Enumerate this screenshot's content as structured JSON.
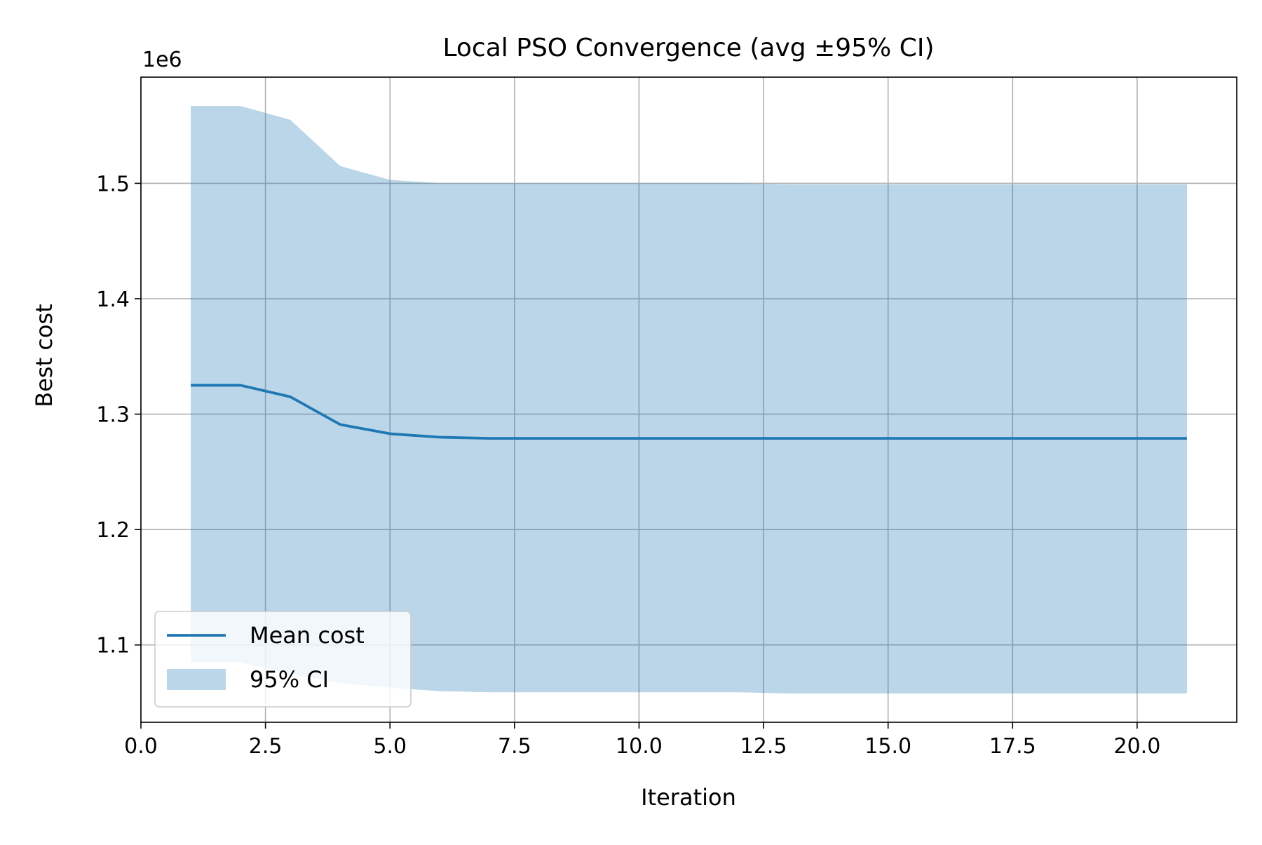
{
  "chart_data": {
    "type": "line",
    "title": "Local PSO Convergence (avg ±95% CI)",
    "xlabel": "Iteration",
    "ylabel": "Best cost",
    "offset_label": "1e6",
    "xlim": [
      0,
      22
    ],
    "ylim": [
      1.033,
      1.592
    ],
    "xticks": [
      0,
      2.5,
      5,
      7.5,
      10,
      12.5,
      15,
      17.5,
      20
    ],
    "xtick_labels": [
      "0.0",
      "2.5",
      "5.0",
      "7.5",
      "10.0",
      "12.5",
      "15.0",
      "17.5",
      "20.0"
    ],
    "yticks": [
      1.1,
      1.2,
      1.3,
      1.4,
      1.5
    ],
    "ytick_labels": [
      "1.1",
      "1.2",
      "1.3",
      "1.4",
      "1.5"
    ],
    "grid": true,
    "legend_position": "lower-left",
    "x": [
      1,
      2,
      3,
      4,
      5,
      6,
      7,
      8,
      9,
      10,
      11,
      12,
      13,
      14,
      15,
      16,
      17,
      18,
      19,
      20,
      21
    ],
    "series": [
      {
        "name": "Mean cost",
        "color": "#1f77b4",
        "values": [
          1.325,
          1.325,
          1.315,
          1.291,
          1.283,
          1.28,
          1.279,
          1.279,
          1.279,
          1.279,
          1.279,
          1.279,
          1.279,
          1.279,
          1.279,
          1.279,
          1.279,
          1.279,
          1.279,
          1.279,
          1.279
        ]
      }
    ],
    "band": {
      "name": "95% CI",
      "color": "#1f77b4",
      "opacity": 0.3,
      "upper": [
        1.567,
        1.567,
        1.555,
        1.515,
        1.503,
        1.5,
        1.5,
        1.5,
        1.5,
        1.5,
        1.5,
        1.5,
        1.499,
        1.499,
        1.499,
        1.499,
        1.499,
        1.499,
        1.499,
        1.499,
        1.499
      ],
      "lower": [
        1.085,
        1.085,
        1.075,
        1.067,
        1.063,
        1.06,
        1.059,
        1.059,
        1.059,
        1.059,
        1.059,
        1.059,
        1.058,
        1.058,
        1.058,
        1.058,
        1.058,
        1.058,
        1.058,
        1.058,
        1.058
      ]
    }
  }
}
